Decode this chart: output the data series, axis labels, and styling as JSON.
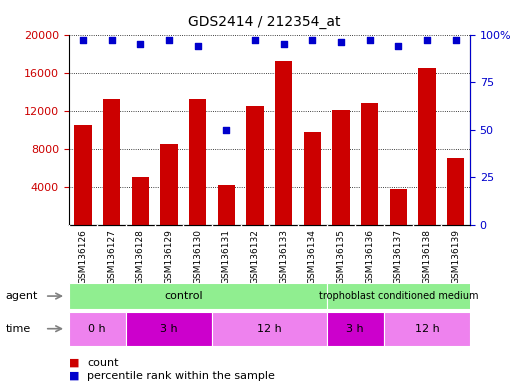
{
  "title": "GDS2414 / 212354_at",
  "samples": [
    "GSM136126",
    "GSM136127",
    "GSM136128",
    "GSM136129",
    "GSM136130",
    "GSM136131",
    "GSM136132",
    "GSM136133",
    "GSM136134",
    "GSM136135",
    "GSM136136",
    "GSM136137",
    "GSM136138",
    "GSM136139"
  ],
  "counts": [
    10500,
    13200,
    5000,
    8500,
    13200,
    4200,
    12500,
    17200,
    9700,
    12100,
    12800,
    3800,
    16500,
    7000
  ],
  "percentile_ranks": [
    97,
    97,
    95,
    97,
    94,
    50,
    97,
    95,
    97,
    96,
    97,
    94,
    97,
    97
  ],
  "bar_color": "#cc0000",
  "dot_color": "#0000cc",
  "ylim_left": [
    0,
    20000
  ],
  "ylim_right": [
    0,
    100
  ],
  "yticks_left": [
    4000,
    8000,
    12000,
    16000,
    20000
  ],
  "yticks_right": [
    0,
    25,
    50,
    75,
    100
  ],
  "tick_label_color": "#cc0000",
  "right_axis_color": "#0000cc",
  "plot_bg": "#ffffff",
  "label_bg": "#d3d3d3",
  "agent_control_color": "#90EE90",
  "time_colors": [
    "#EE82EE",
    "#CC00CC",
    "#EE82EE",
    "#CC00CC",
    "#EE82EE"
  ],
  "time_groups": [
    {
      "label": "0 h",
      "start": 0,
      "end": 2
    },
    {
      "label": "3 h",
      "start": 2,
      "end": 5
    },
    {
      "label": "12 h",
      "start": 5,
      "end": 9
    },
    {
      "label": "3 h",
      "start": 9,
      "end": 11
    },
    {
      "label": "12 h",
      "start": 11,
      "end": 14
    }
  ]
}
